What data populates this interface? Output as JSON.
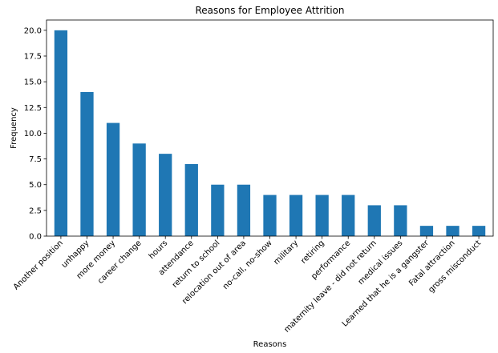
{
  "chart_data": {
    "type": "bar",
    "title": "Reasons for Employee Attrition",
    "xlabel": "Reasons",
    "ylabel": "Frequency",
    "categories": [
      "Another position",
      "unhappy",
      "more money",
      "career change",
      "hours",
      "attendance",
      "return to school",
      "relocation out of area",
      "no-call, no-show",
      "military",
      "retiring",
      "performance",
      "maternity leave - did not return",
      "medical issues",
      "Learned that he is a gangster",
      "Fatal attraction",
      "gross misconduct"
    ],
    "values": [
      20,
      14,
      11,
      9,
      8,
      7,
      5,
      5,
      4,
      4,
      4,
      4,
      3,
      3,
      1,
      1,
      1
    ],
    "ylim": [
      0,
      21
    ],
    "yticks": [
      0.0,
      2.5,
      5.0,
      7.5,
      10.0,
      12.5,
      15.0,
      17.5,
      20.0
    ],
    "ytick_labels": [
      "0.0",
      "2.5",
      "5.0",
      "7.5",
      "10.0",
      "12.5",
      "15.0",
      "17.5",
      "20.0"
    ],
    "grid": false,
    "legend": "none",
    "bar_color": "#1f77b4"
  }
}
